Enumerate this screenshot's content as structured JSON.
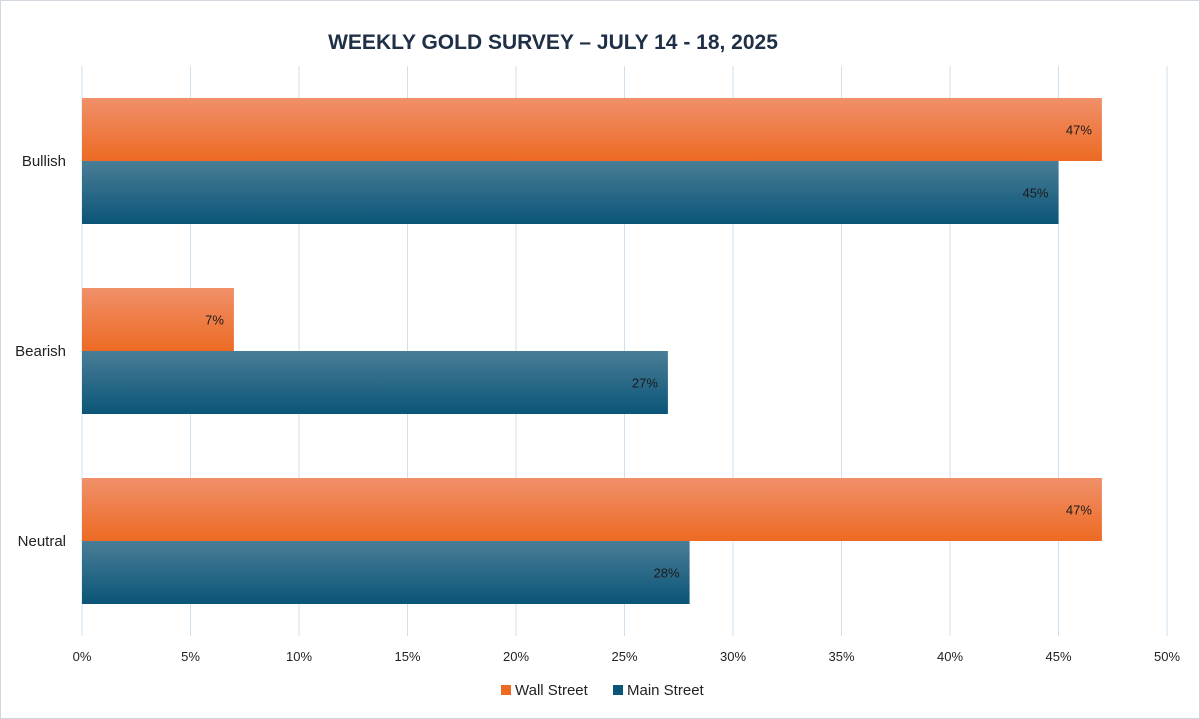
{
  "chart_data": {
    "type": "bar",
    "orientation": "horizontal",
    "title": "WEEKLY GOLD SURVEY – JULY 14 - 18, 2025",
    "categories": [
      "Bullish",
      "Bearish",
      "Neutral"
    ],
    "series": [
      {
        "name": "Wall Street",
        "values": [
          47,
          7,
          47
        ],
        "color": "#ed6a23",
        "color_light": "#f0906a"
      },
      {
        "name": "Main Street",
        "values": [
          45,
          27,
          28
        ],
        "color": "#0a5578",
        "color_light": "#4a7d96"
      }
    ],
    "value_labels": [
      [
        "47%",
        "7%",
        "47%"
      ],
      [
        "45%",
        "27%",
        "28%"
      ]
    ],
    "xlim": [
      0,
      50
    ],
    "xticks": [
      0,
      5,
      10,
      15,
      20,
      25,
      30,
      35,
      40,
      45,
      50
    ],
    "xtick_labels": [
      "0%",
      "5%",
      "10%",
      "15%",
      "20%",
      "25%",
      "30%",
      "35%",
      "40%",
      "45%",
      "50%"
    ],
    "xlabel": "",
    "ylabel": "",
    "grid": true,
    "legend_position": "bottom"
  }
}
